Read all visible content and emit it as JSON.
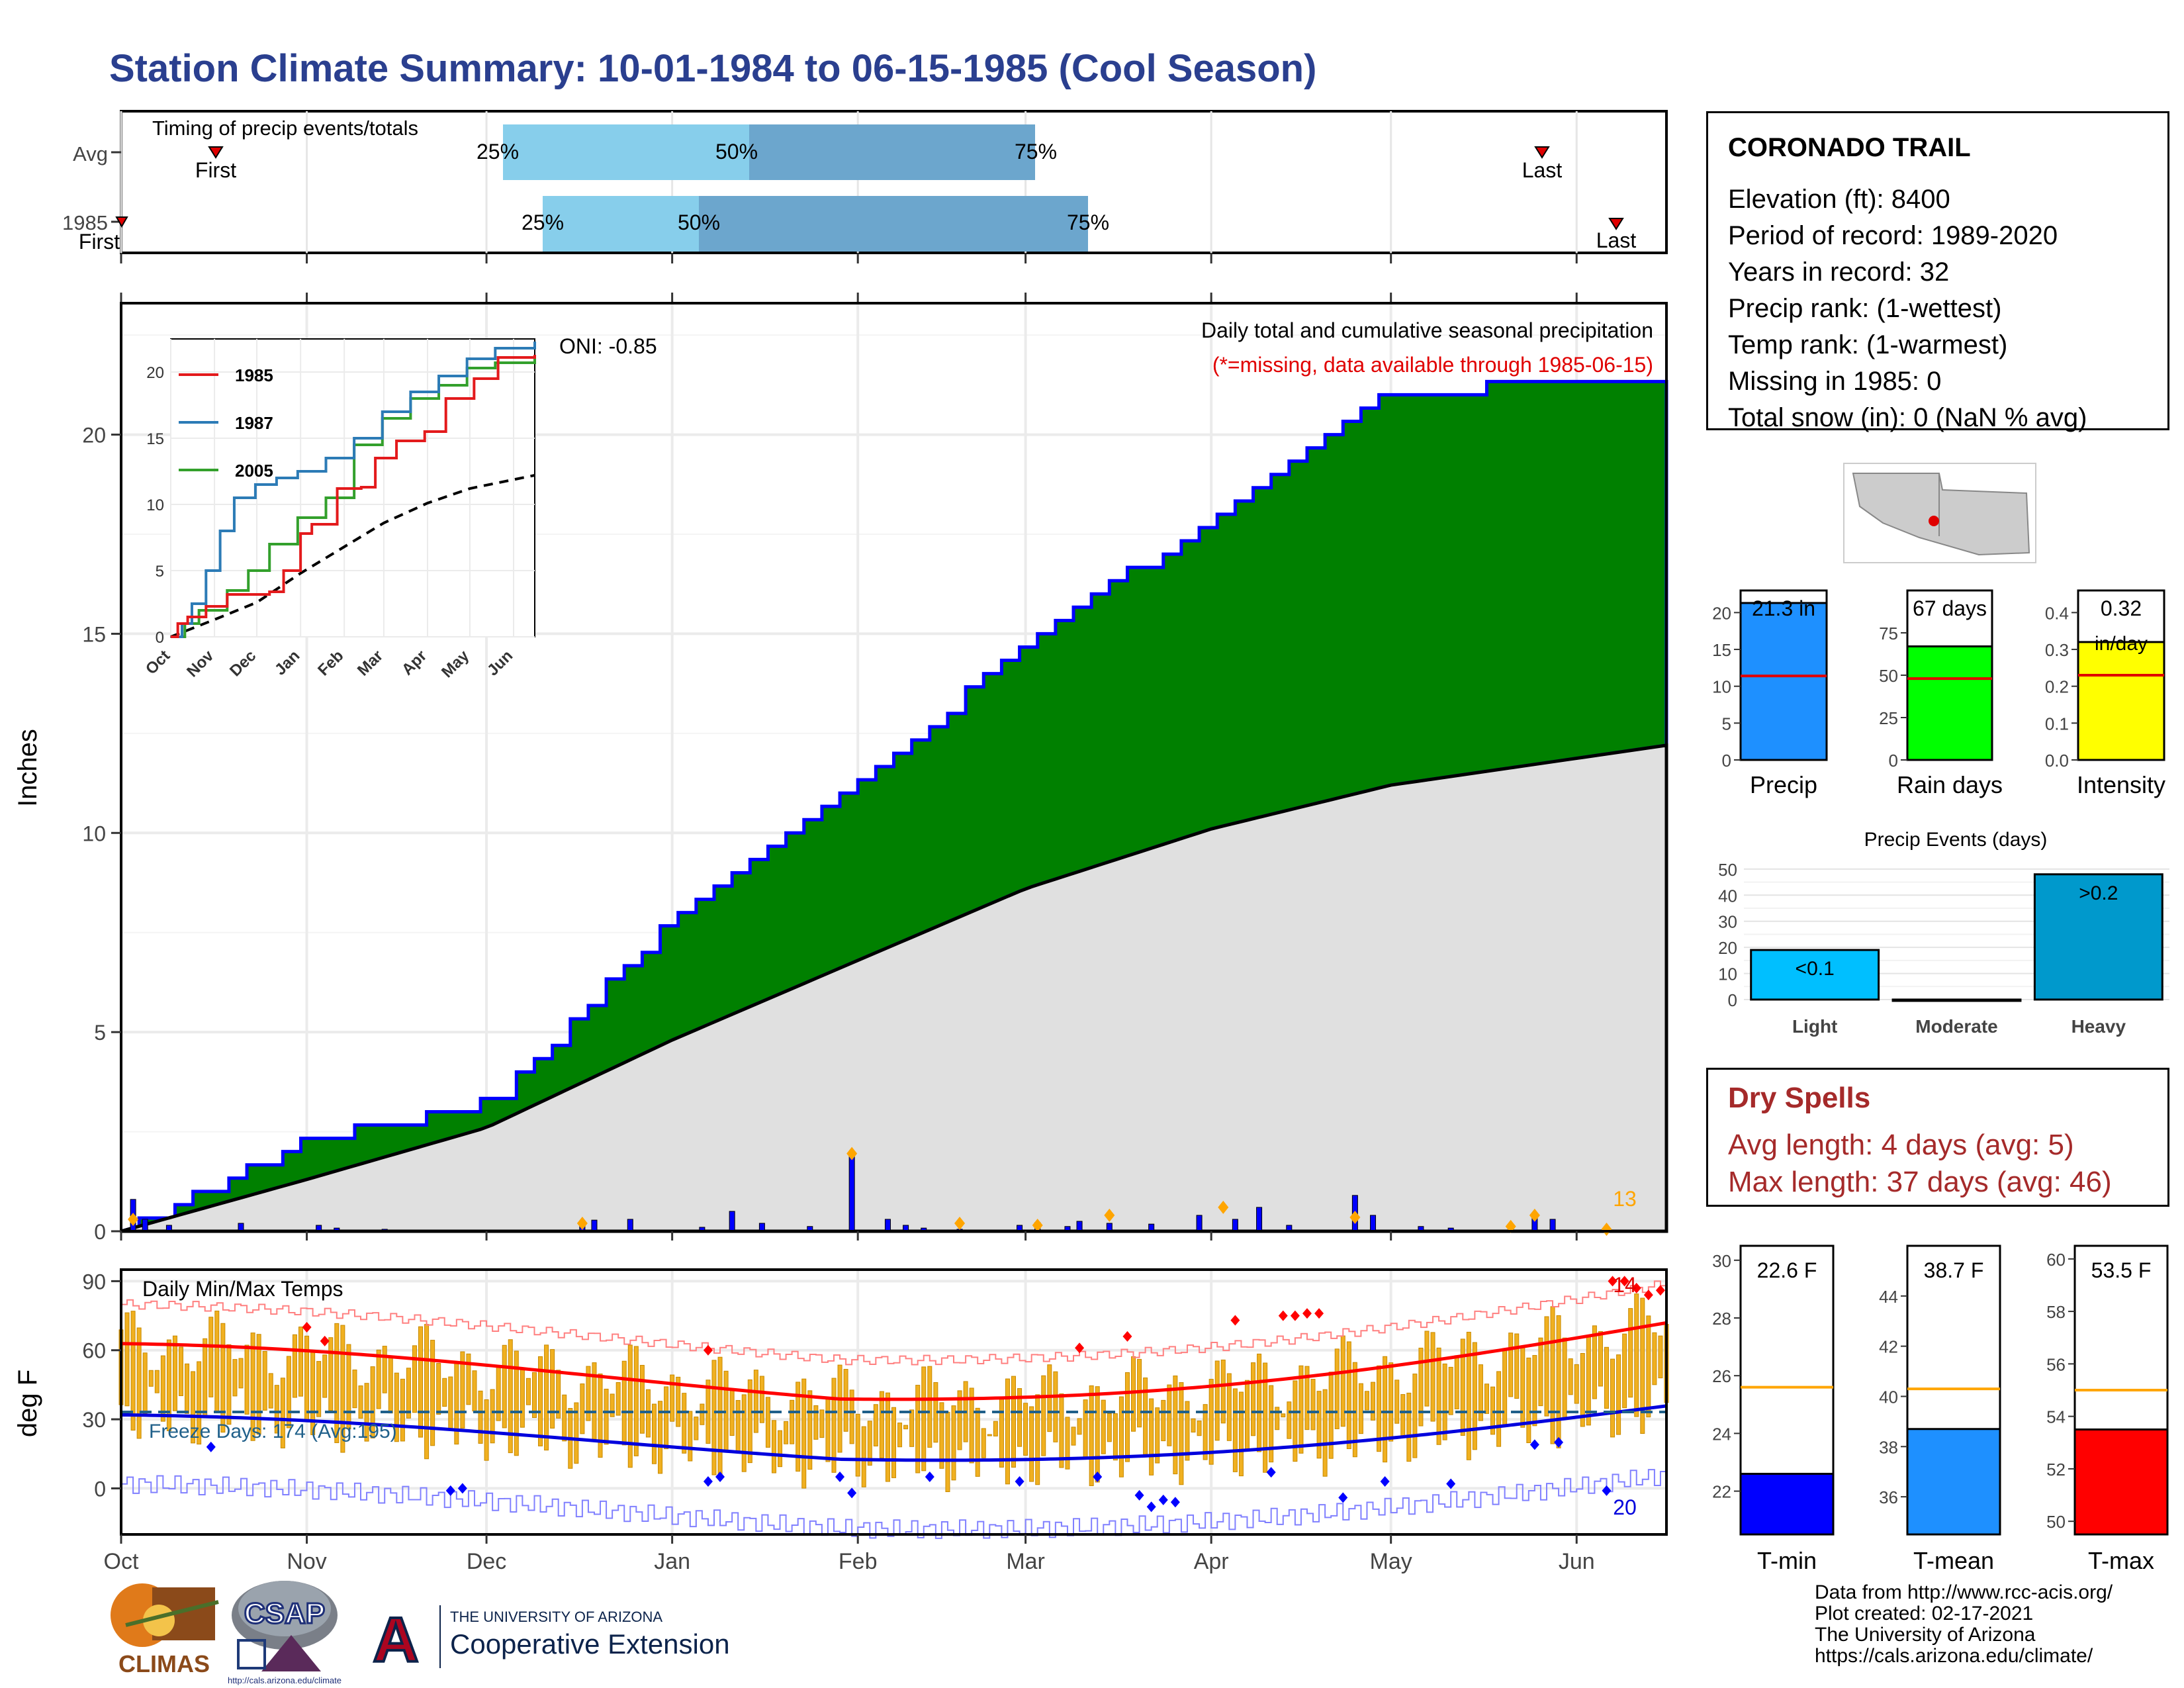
{
  "title": "Station Climate Summary: 10-01-1984 to 06-15-1985 (Cool Season)",
  "timing": {
    "label": "Timing of precip events/totals",
    "rows": [
      {
        "name": "Avg",
        "first_label": "First",
        "last_label": "Last",
        "p25_label": "25%",
        "p50_label": "50%",
        "p75_label": "75%"
      },
      {
        "name": "1985",
        "first_label": "First",
        "last_label": "Last",
        "p25_label": "25%",
        "p50_label": "50%",
        "p75_label": "75%"
      }
    ]
  },
  "precip_panel": {
    "ylabel": "Inches",
    "yticks": [
      "0",
      "5",
      "10",
      "15",
      "20"
    ],
    "oni": "ONI: -0.85",
    "subtitle": "Daily total and cumulative seasonal precipitation",
    "missing_note": "(*=missing, data available through 1985-06-15)",
    "count_label": "13",
    "colors": {
      "observed_fill": "#008000",
      "observed_line": "#0000ff",
      "avg_fill": "#e0e0e0",
      "daily_bar": "#0000ff",
      "marker": "#ffa500"
    }
  },
  "inset": {
    "legend": [
      "1985",
      "1987",
      "2005"
    ],
    "legend_colors": [
      "#e31a1c",
      "#2c7bb6",
      "#33a02c"
    ],
    "yticks": [
      "0",
      "5",
      "10",
      "15",
      "20"
    ],
    "xticks": [
      "Oct",
      "Nov",
      "Dec",
      "Jan",
      "Feb",
      "Mar",
      "Apr",
      "May",
      "Jun"
    ]
  },
  "temp_panel": {
    "ylabel": "deg F",
    "label": "Daily Min/Max Temps",
    "yticks": [
      "0",
      "30",
      "60",
      "90"
    ],
    "freeze_label": "Freeze Days: 174 (Avg:195)",
    "count_hot": "14",
    "count_cold": "20",
    "xticks": [
      "Oct",
      "Nov",
      "Dec",
      "Jan",
      "Feb",
      "Mar",
      "Apr",
      "May",
      "Jun"
    ]
  },
  "station": {
    "name": "CORONADO TRAIL",
    "lines": [
      "Elevation (ft): 8400",
      "Period of record: 1989-2020",
      "Years in record: 32",
      "Precip rank:  (1-wettest)",
      "Temp rank:  (1-warmest)",
      "Missing in 1985: 0",
      "Total snow (in): 0 (NaN % avg)"
    ]
  },
  "summary_bars": [
    {
      "label": "Precip",
      "value_label": "21.3 in",
      "value": 21.3,
      "avg": 11.4,
      "ymax": 23,
      "yticks": [
        "0",
        "5",
        "10",
        "15",
        "20"
      ],
      "tickvals": [
        0,
        5,
        10,
        15,
        20
      ],
      "color": "#1e90ff"
    },
    {
      "label": "Rain days",
      "value_label": "67 days",
      "value": 67,
      "avg": 48,
      "ymax": 100,
      "yticks": [
        "0",
        "25",
        "50",
        "75"
      ],
      "tickvals": [
        0,
        25,
        50,
        75
      ],
      "color": "#00ff00"
    },
    {
      "label": "Intensity",
      "value_label": "0.32",
      "value_label2": "in/day",
      "value": 0.32,
      "avg": 0.23,
      "ymax": 0.46,
      "yticks": [
        "0.0",
        "0.1",
        "0.2",
        "0.3",
        "0.4"
      ],
      "tickvals": [
        0,
        0.1,
        0.2,
        0.3,
        0.4
      ],
      "color": "#ffff00"
    }
  ],
  "precip_events": {
    "title": "Precip Events (days)",
    "categories": [
      "Light",
      "Moderate",
      "Heavy"
    ],
    "values": [
      19,
      0,
      48
    ],
    "bar_labels": [
      "<0.1",
      "",
      ">0.2"
    ],
    "colors": [
      "#00bfff",
      "#0090d0",
      "#0099cc"
    ],
    "yticks": [
      "0",
      "10",
      "20",
      "30",
      "40",
      "50"
    ]
  },
  "dry_spells": {
    "title": "Dry Spells",
    "avg_line": "Avg length: 4 days (avg: 5)",
    "max_line": "Max length: 37 days (avg: 46)"
  },
  "temp_bars": [
    {
      "label": "T-min",
      "value_label": "22.6 F",
      "value": 22.6,
      "avg": 25.6,
      "ylim": [
        20.5,
        30.5
      ],
      "yticks": [
        "22",
        "24",
        "26",
        "28",
        "30"
      ],
      "tickvals": [
        22,
        24,
        26,
        28,
        30
      ],
      "color": "#0000ff"
    },
    {
      "label": "T-mean",
      "value_label": "38.7 F",
      "value": 38.7,
      "avg": 40.3,
      "ylim": [
        34.5,
        46
      ],
      "yticks": [
        "36",
        "38",
        "40",
        "42",
        "44"
      ],
      "tickvals": [
        36,
        38,
        40,
        42,
        44
      ],
      "color": "#1e90ff"
    },
    {
      "label": "T-max",
      "value_label": "53.5 F",
      "value": 53.5,
      "avg": 55.0,
      "ylim": [
        49.5,
        60.5
      ],
      "yticks": [
        "50",
        "52",
        "54",
        "56",
        "58",
        "60"
      ],
      "tickvals": [
        50,
        52,
        54,
        56,
        58,
        60
      ],
      "color": "#ff0000"
    }
  ],
  "logos": {
    "climas": "CLIMAS",
    "csap": "CSAP",
    "csap_url": "http://cals.arizona.edu/climate",
    "ua_top": "THE UNIVERSITY OF ARIZONA",
    "ua_bottom": "Cooperative Extension",
    "ua_letter": "A"
  },
  "credits": [
    "Data from http://www.rcc-acis.org/",
    "Plot created: 02-17-2021",
    "The University of Arizona",
    "https://cals.arizona.edu/climate/"
  ],
  "chart_data": {
    "type": "area",
    "title": "Daily total and cumulative seasonal precipitation",
    "ylabel": "Inches",
    "ylim": [
      0,
      23.3
    ],
    "x": [
      "Oct",
      "Nov",
      "Dec",
      "Jan",
      "Feb",
      "Mar",
      "Apr",
      "May",
      "Jun"
    ],
    "series": [
      {
        "name": "1985",
        "values": [
          0,
          2.3,
          3.2,
          7.8,
          11.2,
          14.8,
          17.9,
          21.1,
          21.3
        ]
      }
    ],
    "avg_cumulative": [
      0,
      1.3,
      2.6,
      4.8,
      6.8,
      8.6,
      10.1,
      11.2,
      12.2
    ]
  }
}
